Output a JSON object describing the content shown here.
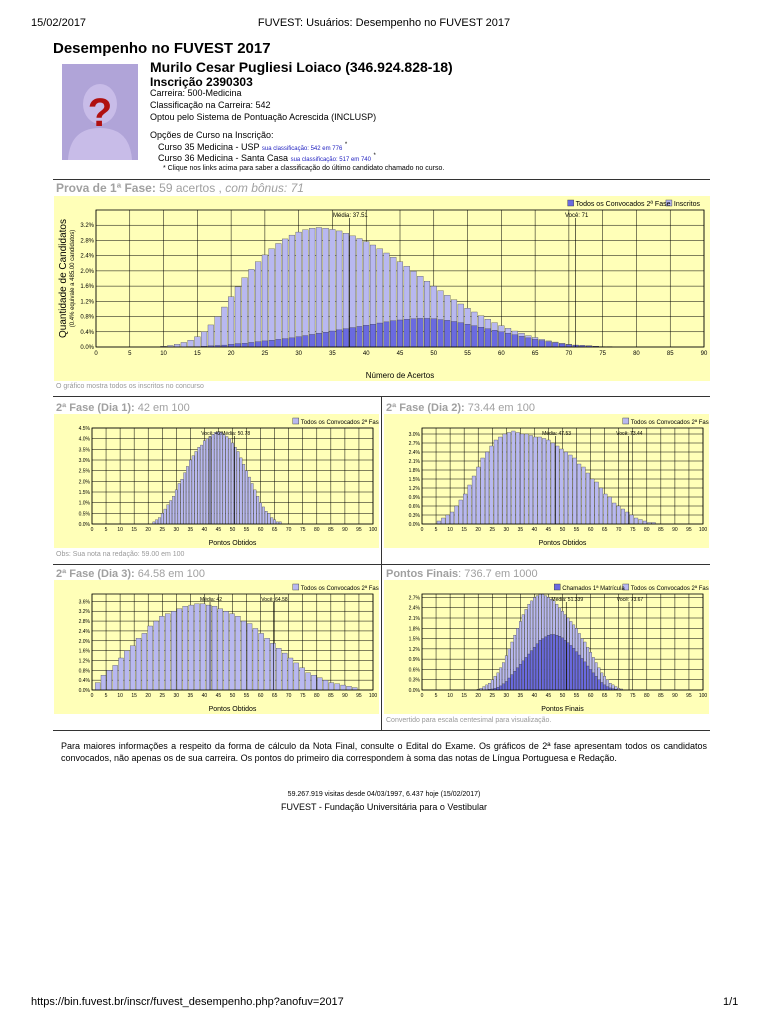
{
  "header": {
    "date": "15/02/2017",
    "page_title": "FUVEST: Usuários: Desempenho no FUVEST 2017"
  },
  "page": {
    "title": "Desempenho no FUVEST 2017",
    "candidate_name": "Murilo Cesar Pugliesi Loiaco (346.924.828-18)",
    "inscricao": "Inscrição 2390303",
    "carreira": "Carreira: 500-Medicina",
    "classificacao": "Classificação na Carreira: 542",
    "sistema": "Optou pelo Sistema de Pontuação Acrescida (INCLUSP)",
    "opcoes_title": "Opções de Curso na Inscrição:",
    "opcoes": [
      {
        "text": "Curso 35 Medicina - USP",
        "link": "sua classificação: 542 em 776",
        "mark": "*"
      },
      {
        "text": "Curso 36 Medicina - Santa Casa",
        "link": "sua classificação: 517 em 740",
        "mark": "*"
      }
    ],
    "opcoes_note": "* Clique nos links acima para saber a classificação do último candidato chamado no curso."
  },
  "sections": {
    "fase1_title": "Prova de 1ª Fase:",
    "fase1_detail": " 59 acertos , ",
    "fase1_bonus": "com bônus: 71",
    "fase1_caption": "O gráfico mostra todos os inscritos no concurso",
    "d1_title": "2ª Fase (Dia 1):",
    "d1_detail": " 42 em 100",
    "d1_caption": "Obs: Sua nota na redação: 59.00 em 100",
    "d2_title": "2ª Fase (Dia 2):",
    "d2_detail": " 73.44 em 100",
    "d3_title": "2ª Fase (Dia 3):",
    "d3_detail": " 64.58 em 100",
    "final_title": "Pontos Finais",
    "final_detail": ": 736.7 em 1000",
    "final_caption": "Convertido para escala centesimal para visualização."
  },
  "footer": {
    "paragraph": "Para maiores informações a respeito da forma de cálculo da Nota Final, consulte o Edital do Exame. Os gráficos de 2ª fase apresentam todos os candidatos convocados, não apenas os de sua carreira. Os pontos do primeiro dia correspondem à soma das notas de Língua Portuguesa e Redação.",
    "visits": "59.267.919 visitas desde 04/03/1997, 6.437 hoje (15/02/2017)",
    "org": "FUVEST - Fundação Universitária para o Vestibular",
    "url": "https://bin.fuvest.br/inscr/fuvest_desempenho.php?anofuv=2017",
    "pagenum": "1/1"
  },
  "colors": {
    "light": "#b8b8f0",
    "dark": "#6a6ae0",
    "chart_bg": "#ffffb8",
    "grid": "#000000"
  },
  "chart_data": [
    {
      "type": "bar",
      "id": "fase1",
      "xlabel": "Número de Acertos",
      "ylabel": "Quantidade de Candidatos",
      "ylabel2": "(0.4% equivale a 485.00 candidatos)",
      "legend": [
        "Todos os Convocados 2ª Fase",
        "Inscritos"
      ],
      "xlim": [
        0,
        90
      ],
      "ylim": [
        0,
        3.6
      ],
      "xticks": [
        0,
        5,
        10,
        15,
        20,
        25,
        30,
        35,
        40,
        45,
        50,
        55,
        60,
        65,
        70,
        75,
        80,
        85,
        90
      ],
      "yticks": [
        "0.0%",
        "0.4%",
        "0.8%",
        "1.2%",
        "1.6%",
        "2.0%",
        "2.4%",
        "2.8%",
        "3.2%"
      ],
      "markers": [
        {
          "label": "Média: 37.51",
          "x": 37.51
        },
        {
          "label": "Você: 71",
          "x": 71
        }
      ],
      "series": [
        {
          "name": "Inscritos",
          "x_start": 10,
          "values": [
            0.02,
            0.04,
            0.07,
            0.12,
            0.18,
            0.27,
            0.4,
            0.58,
            0.8,
            1.05,
            1.32,
            1.58,
            1.82,
            2.04,
            2.24,
            2.42,
            2.58,
            2.72,
            2.84,
            2.94,
            3.02,
            3.08,
            3.12,
            3.14,
            3.12,
            3.09,
            3.05,
            2.99,
            2.92,
            2.85,
            2.77,
            2.68,
            2.58,
            2.47,
            2.36,
            2.24,
            2.12,
            1.99,
            1.86,
            1.73,
            1.6,
            1.48,
            1.36,
            1.24,
            1.13,
            1.02,
            0.92,
            0.82,
            0.73,
            0.64,
            0.56,
            0.49,
            0.42,
            0.36,
            0.3,
            0.25,
            0.2,
            0.16,
            0.13,
            0.1,
            0.07,
            0.05,
            0.04,
            0.03,
            0.02,
            0.01,
            0.01
          ]
        },
        {
          "name": "Todos os Convocados 2ª Fase",
          "x_start": 10,
          "values": [
            0,
            0,
            0,
            0,
            0.01,
            0.01,
            0.02,
            0.03,
            0.04,
            0.05,
            0.07,
            0.09,
            0.1,
            0.12,
            0.14,
            0.16,
            0.18,
            0.2,
            0.22,
            0.24,
            0.27,
            0.3,
            0.33,
            0.36,
            0.39,
            0.42,
            0.45,
            0.48,
            0.51,
            0.54,
            0.57,
            0.6,
            0.63,
            0.66,
            0.69,
            0.71,
            0.73,
            0.74,
            0.75,
            0.75,
            0.74,
            0.72,
            0.7,
            0.67,
            0.64,
            0.6,
            0.56,
            0.52,
            0.48,
            0.44,
            0.4,
            0.36,
            0.32,
            0.28,
            0.24,
            0.2,
            0.17,
            0.14,
            0.11,
            0.08,
            0.06,
            0.05,
            0.04,
            0.03,
            0.02,
            0.01,
            0.01
          ]
        }
      ]
    },
    {
      "type": "bar",
      "id": "dia1",
      "xlabel": "Pontos Obtidos",
      "legend": [
        "Todos os Convocados 2ª Fase"
      ],
      "xlim": [
        0,
        100
      ],
      "ylim": [
        0,
        4.5
      ],
      "xticks": [
        0,
        5,
        10,
        15,
        20,
        25,
        30,
        35,
        40,
        45,
        50,
        55,
        60,
        65,
        70,
        75,
        80,
        85,
        90,
        95,
        100
      ],
      "yticks": [
        "0.0%",
        "0.5%",
        "1.0%",
        "1.5%",
        "2.0%",
        "2.5%",
        "3.0%",
        "3.5%",
        "4.0%",
        "4.5%"
      ],
      "markers": [
        {
          "label": "Média: 50.78",
          "x": 50.78
        },
        {
          "label": "Você: 42",
          "x": 42
        }
      ],
      "series": [
        {
          "name": "Todos os Convocados 2ª Fase",
          "x_start": 22,
          "step": 1,
          "values": [
            0.1,
            0.2,
            0.3,
            0.5,
            0.7,
            0.9,
            1.1,
            1.3,
            1.6,
            1.9,
            2.1,
            2.4,
            2.7,
            3.0,
            3.2,
            3.4,
            3.6,
            3.7,
            3.9,
            4.0,
            4.1,
            4.2,
            4.3,
            4.3,
            4.3,
            4.2,
            4.1,
            4.0,
            3.8,
            3.6,
            3.4,
            3.1,
            2.8,
            2.5,
            2.2,
            1.9,
            1.6,
            1.3,
            1.0,
            0.8,
            0.6,
            0.5,
            0.3,
            0.2,
            0.1,
            0.1
          ]
        }
      ]
    },
    {
      "type": "bar",
      "id": "dia2",
      "xlabel": "Pontos Obtidos",
      "legend": [
        "Todos os Convocados 2ª Fase"
      ],
      "xlim": [
        0,
        100
      ],
      "ylim": [
        0,
        3.2
      ],
      "xticks": [
        0,
        5,
        10,
        15,
        20,
        25,
        30,
        35,
        40,
        45,
        50,
        55,
        60,
        65,
        70,
        75,
        80,
        85,
        90,
        95,
        100
      ],
      "yticks": [
        "0.0%",
        "0.3%",
        "0.6%",
        "0.9%",
        "1.2%",
        "1.5%",
        "1.8%",
        "2.1%",
        "2.4%",
        "2.7%",
        "3.0%"
      ],
      "markers": [
        {
          "label": "Média: 47.53",
          "x": 47.53
        },
        {
          "label": "Você: 73.44",
          "x": 73.44
        }
      ],
      "series": [
        {
          "name": "Todos os Convocados 2ª Fase",
          "x_start": 6,
          "step": 1.56,
          "values": [
            0.1,
            0.2,
            0.3,
            0.4,
            0.6,
            0.8,
            1.0,
            1.3,
            1.6,
            1.9,
            2.2,
            2.4,
            2.6,
            2.8,
            2.9,
            3.0,
            3.05,
            3.1,
            3.05,
            3.0,
            3.0,
            2.95,
            2.9,
            2.9,
            2.85,
            2.8,
            2.7,
            2.6,
            2.5,
            2.4,
            2.3,
            2.2,
            2.0,
            1.9,
            1.7,
            1.5,
            1.4,
            1.2,
            1.0,
            0.9,
            0.7,
            0.6,
            0.5,
            0.4,
            0.3,
            0.2,
            0.15,
            0.1,
            0.05,
            0.05
          ]
        }
      ]
    },
    {
      "type": "bar",
      "id": "dia3",
      "xlabel": "Pontos Obtidos",
      "legend": [
        "Todos os Convocados 2ª Fase"
      ],
      "xlim": [
        0,
        100
      ],
      "ylim": [
        0,
        3.9
      ],
      "xticks": [
        0,
        5,
        10,
        15,
        20,
        25,
        30,
        35,
        40,
        45,
        50,
        55,
        60,
        65,
        70,
        75,
        80,
        85,
        90,
        95,
        100
      ],
      "yticks": [
        "0.0%",
        "0.4%",
        "0.8%",
        "1.2%",
        "1.6%",
        "2.0%",
        "2.4%",
        "2.8%",
        "3.2%",
        "3.6%"
      ],
      "markers": [
        {
          "label": "Média: 42",
          "x": 42
        },
        {
          "label": "Você: 64.58",
          "x": 64.58
        }
      ],
      "series": [
        {
          "name": "Todos os Convocados 2ª Fase",
          "x_start": 2,
          "step": 2.08,
          "values": [
            0.3,
            0.6,
            0.8,
            1.0,
            1.3,
            1.6,
            1.8,
            2.1,
            2.3,
            2.6,
            2.8,
            3.0,
            3.1,
            3.2,
            3.3,
            3.4,
            3.45,
            3.5,
            3.5,
            3.45,
            3.4,
            3.3,
            3.2,
            3.1,
            3.0,
            2.8,
            2.7,
            2.5,
            2.3,
            2.1,
            1.9,
            1.7,
            1.5,
            1.3,
            1.1,
            0.9,
            0.7,
            0.6,
            0.5,
            0.4,
            0.3,
            0.25,
            0.2,
            0.15,
            0.1
          ]
        }
      ]
    },
    {
      "type": "bar",
      "id": "final",
      "xlabel": "Pontos Finais",
      "legend": [
        "Chamados 1ª Matrícula",
        "Todos os Convocados 2ª Fase"
      ],
      "xlim": [
        0,
        100
      ],
      "ylim": [
        0,
        2.8
      ],
      "xticks": [
        0,
        5,
        10,
        15,
        20,
        25,
        30,
        35,
        40,
        45,
        50,
        55,
        60,
        65,
        70,
        75,
        80,
        85,
        90,
        95,
        100
      ],
      "yticks": [
        "0.0%",
        "0.3%",
        "0.6%",
        "0.9%",
        "1.2%",
        "1.5%",
        "1.8%",
        "2.1%",
        "2.4%",
        "2.7%"
      ],
      "markers": [
        {
          "label": "Média: 51.339",
          "x": 51.339
        },
        {
          "label": "Você: 73.67",
          "x": 73.67
        }
      ],
      "series": [
        {
          "name": "Todos os Convocados 2ª Fase",
          "x_start": 20,
          "step": 1,
          "values": [
            0.02,
            0.05,
            0.1,
            0.15,
            0.2,
            0.3,
            0.4,
            0.5,
            0.65,
            0.8,
            1.0,
            1.2,
            1.4,
            1.6,
            1.8,
            2.0,
            2.2,
            2.35,
            2.5,
            2.6,
            2.7,
            2.75,
            2.8,
            2.8,
            2.75,
            2.7,
            2.65,
            2.6,
            2.5,
            2.4,
            2.3,
            2.2,
            2.1,
            2.0,
            1.9,
            1.8,
            1.65,
            1.5,
            1.4,
            1.25,
            1.1,
            0.95,
            0.8,
            0.65,
            0.5,
            0.4,
            0.3,
            0.2,
            0.15,
            0.1,
            0.05,
            0.03
          ]
        },
        {
          "name": "Chamados 1ª Matrícula",
          "x_start": 20,
          "step": 1,
          "values": [
            0,
            0,
            0,
            0.01,
            0.02,
            0.03,
            0.05,
            0.08,
            0.12,
            0.18,
            0.25,
            0.35,
            0.45,
            0.55,
            0.65,
            0.75,
            0.85,
            0.95,
            1.05,
            1.15,
            1.25,
            1.35,
            1.45,
            1.5,
            1.55,
            1.6,
            1.62,
            1.62,
            1.6,
            1.57,
            1.52,
            1.45,
            1.38,
            1.3,
            1.22,
            1.12,
            1.02,
            0.92,
            0.82,
            0.7,
            0.6,
            0.5,
            0.4,
            0.3,
            0.22,
            0.15,
            0.1,
            0.06,
            0.04,
            0.02,
            0.01,
            0.01
          ]
        }
      ]
    }
  ]
}
